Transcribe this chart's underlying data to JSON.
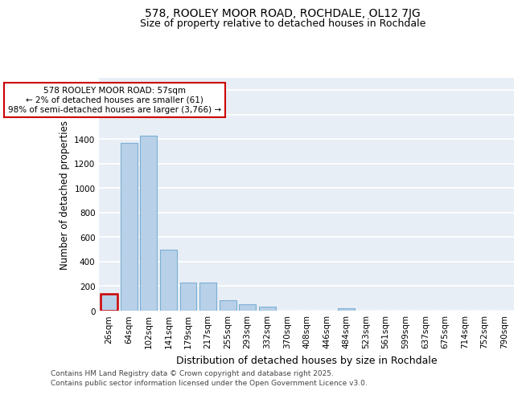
{
  "title": "578, ROOLEY MOOR ROAD, ROCHDALE, OL12 7JG",
  "subtitle": "Size of property relative to detached houses in Rochdale",
  "xlabel": "Distribution of detached houses by size in Rochdale",
  "ylabel": "Number of detached properties",
  "categories": [
    "26sqm",
    "64sqm",
    "102sqm",
    "141sqm",
    "179sqm",
    "217sqm",
    "255sqm",
    "293sqm",
    "332sqm",
    "370sqm",
    "408sqm",
    "446sqm",
    "484sqm",
    "523sqm",
    "561sqm",
    "599sqm",
    "637sqm",
    "675sqm",
    "714sqm",
    "752sqm",
    "790sqm"
  ],
  "values": [
    140,
    1370,
    1430,
    500,
    230,
    230,
    85,
    55,
    30,
    0,
    0,
    0,
    20,
    0,
    0,
    0,
    0,
    0,
    0,
    0,
    0
  ],
  "bar_color": "#b8d0e8",
  "bar_edge_color": "#7aafd4",
  "highlight_bar_index": 0,
  "highlight_bar_edge_color": "#cc0000",
  "background_color": "#ffffff",
  "plot_bg_color": "#e8eef5",
  "grid_color": "#ffffff",
  "ylim": [
    0,
    1900
  ],
  "yticks": [
    0,
    200,
    400,
    600,
    800,
    1000,
    1200,
    1400,
    1600,
    1800
  ],
  "annotation_text": "578 ROOLEY MOOR ROAD: 57sqm\n← 2% of detached houses are smaller (61)\n98% of semi-detached houses are larger (3,766) →",
  "footer_line1": "Contains HM Land Registry data © Crown copyright and database right 2025.",
  "footer_line2": "Contains public sector information licensed under the Open Government Licence v3.0.",
  "title_fontsize": 10,
  "subtitle_fontsize": 9,
  "tick_fontsize": 7.5,
  "ylabel_fontsize": 8.5,
  "xlabel_fontsize": 9,
  "footer_fontsize": 6.5
}
